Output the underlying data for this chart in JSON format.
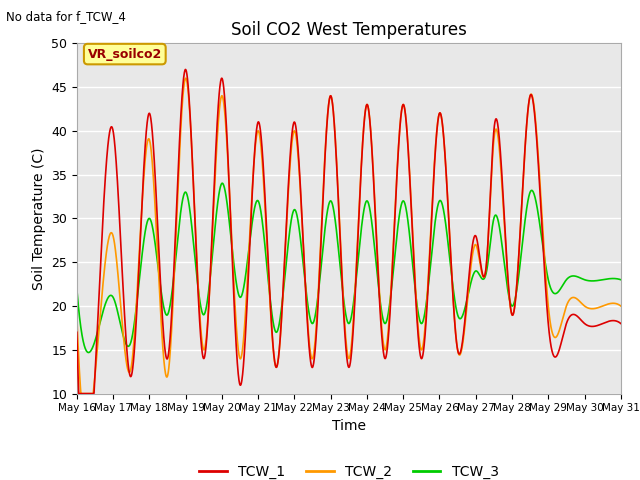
{
  "title": "Soil CO2 West Temperatures",
  "xlabel": "Time",
  "ylabel": "Soil Temperature (C)",
  "ylim": [
    10,
    50
  ],
  "background_color": "#e8e8e8",
  "fig_background": "#ffffff",
  "note": "No data for f_TCW_4",
  "annotation_box": "VR_soilco2",
  "legend": [
    "TCW_1",
    "TCW_2",
    "TCW_3"
  ],
  "line_colors": [
    "#dd0000",
    "#ff9900",
    "#00cc00"
  ],
  "xtick_labels": [
    "May 16",
    "May 17",
    "May 18",
    "May 19",
    "May 20",
    "May 21",
    "May 22",
    "May 23",
    "May 24",
    "May 25",
    "May 26",
    "May 27",
    "May 28",
    "May 29",
    "May 30",
    "May 31"
  ],
  "ytick_labels": [
    10,
    15,
    20,
    25,
    30,
    35,
    40,
    45,
    50
  ],
  "TCW1_x": [
    0.0,
    0.15,
    0.5,
    1.0,
    1.5,
    2.0,
    2.5,
    3.0,
    3.5,
    4.0,
    4.5,
    5.0,
    5.5,
    6.0,
    6.5,
    7.0,
    7.5,
    8.0,
    8.5,
    9.0,
    9.5,
    10.0,
    10.5,
    10.7,
    11.0,
    11.5,
    12.0,
    12.5,
    13.0,
    13.5,
    14.0,
    14.5,
    15.0
  ],
  "TCW1_y": [
    17,
    19,
    12,
    40,
    12,
    42,
    14,
    47,
    14,
    46,
    11,
    41,
    13,
    41,
    13,
    44,
    13,
    43,
    14,
    43,
    14,
    42,
    15,
    28,
    25,
    40,
    19,
    44,
    18,
    18,
    18,
    18,
    18
  ],
  "TCW2_x": [
    0.0,
    0.15,
    0.5,
    1.0,
    1.5,
    2.0,
    2.5,
    3.0,
    3.5,
    4.0,
    4.5,
    5.0,
    5.5,
    6.0,
    6.5,
    7.0,
    7.5,
    8.0,
    8.5,
    9.0,
    9.5,
    10.0,
    10.5,
    10.7,
    11.0,
    11.5,
    12.0,
    12.5,
    13.0,
    13.5,
    14.0,
    14.5,
    15.0
  ],
  "TCW2_y": [
    19,
    19,
    12,
    28,
    13,
    39,
    12,
    46,
    15,
    44,
    14,
    40,
    13,
    40,
    14,
    44,
    14,
    43,
    15,
    43,
    15,
    42,
    15,
    27,
    25,
    39,
    19,
    44,
    20,
    20,
    20,
    20,
    20
  ],
  "TCW3_x": [
    0.0,
    0.15,
    0.5,
    1.0,
    1.5,
    2.0,
    2.5,
    3.0,
    3.5,
    4.0,
    4.5,
    5.0,
    5.5,
    6.0,
    6.5,
    7.0,
    7.5,
    8.0,
    8.5,
    9.0,
    9.5,
    10.0,
    10.5,
    10.7,
    11.0,
    11.5,
    12.0,
    12.5,
    13.0,
    13.5,
    14.0,
    14.5,
    15.0
  ],
  "TCW3_y": [
    22,
    21,
    16,
    21,
    16,
    30,
    19,
    33,
    19,
    34,
    21,
    32,
    17,
    31,
    18,
    32,
    18,
    32,
    18,
    32,
    18,
    32,
    19,
    24,
    24,
    30,
    20,
    33,
    23,
    23,
    23,
    23,
    23
  ]
}
